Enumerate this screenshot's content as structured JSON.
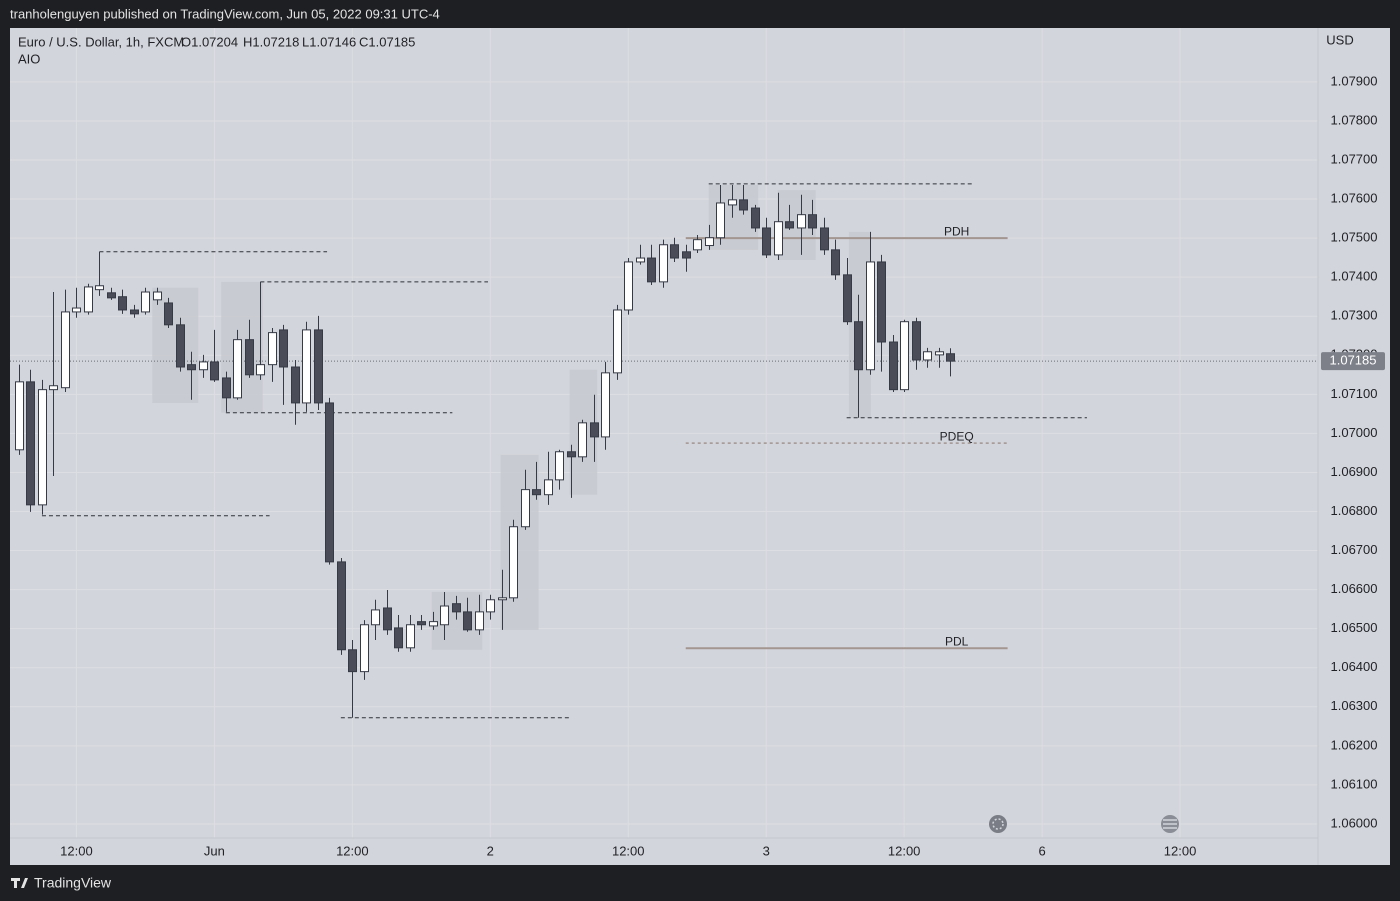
{
  "header": {
    "title": "tranholenguyen published on TradingView.com, Jun 05, 2022 09:31 UTC-4"
  },
  "footer": {
    "brand": "TradingView"
  },
  "chart_data": {
    "type": "candlestick",
    "symbol": "Euro / U.S. Dollar, 1h, FXCM",
    "ohlc_legend": [
      "O1.07204",
      "H1.07218",
      "L1.07146",
      "C1.07185"
    ],
    "indicator": "AIO",
    "currency": "USD",
    "open": [
      1.06958,
      1.07132,
      1.06817,
      1.07112,
      1.07117,
      1.07311,
      1.07311,
      1.07368,
      1.0736,
      1.0735,
      1.07316,
      1.07311,
      1.07342,
      1.07334,
      1.07278,
      1.07176,
      1.07163,
      1.07183,
      1.07142,
      1.07091,
      1.0724,
      1.0715,
      1.07176,
      1.07265,
      1.0717,
      1.07078,
      1.07265,
      1.07078,
      1.06671,
      1.06446,
      1.0639,
      1.0651,
      1.06553,
      1.06502,
      1.06451,
      1.06518,
      1.06507,
      1.0651,
      1.06564,
      1.06543,
      1.06497,
      1.06543,
      1.06574,
      1.06579,
      1.06761,
      1.06856,
      1.06843,
      1.06881,
      1.06953,
      1.0694,
      1.07027,
      1.06991,
      1.07155,
      1.07316,
      1.07439,
      1.07449,
      1.07388,
      1.07483,
      1.07465,
      1.0747,
      1.07481,
      1.07501,
      1.07585,
      1.07598,
      1.07577,
      1.07526,
      1.07457,
      1.07542,
      1.07526,
      1.0756,
      1.07526,
      1.0747,
      1.07406,
      1.07286,
      1.07163,
      1.07439,
      1.07234,
      1.07112,
      1.07286,
      1.07188,
      1.07201,
      1.07204
    ],
    "high": [
      1.07176,
      1.07163,
      1.07137,
      1.07362,
      1.07368,
      1.07373,
      1.07383,
      1.07465,
      1.07373,
      1.07368,
      1.07329,
      1.07373,
      1.07373,
      1.07347,
      1.07296,
      1.07209,
      1.07201,
      1.07265,
      1.07158,
      1.07265,
      1.07291,
      1.07388,
      1.0727,
      1.07278,
      1.07188,
      1.07286,
      1.07301,
      1.07091,
      1.06681,
      1.06471,
      1.06522,
      1.06574,
      1.06599,
      1.06535,
      1.06535,
      1.06535,
      1.06543,
      1.06594,
      1.06584,
      1.06579,
      1.06587,
      1.06587,
      1.06651,
      1.06779,
      1.06907,
      1.06927,
      1.06953,
      1.06958,
      1.06971,
      1.07035,
      1.07099,
      1.07183,
      1.07329,
      1.07449,
      1.07483,
      1.07483,
      1.07496,
      1.07501,
      1.07483,
      1.07508,
      1.07534,
      1.07636,
      1.07636,
      1.07636,
      1.07585,
      1.07552,
      1.07616,
      1.07585,
      1.07611,
      1.07598,
      1.07552,
      1.07496,
      1.07449,
      1.07355,
      1.07516,
      1.07457,
      1.07252,
      1.07291,
      1.07296,
      1.07219,
      1.07219,
      1.07218
    ],
    "low": [
      1.06945,
      1.06799,
      1.06792,
      1.06891,
      1.07106,
      1.07296,
      1.07304,
      1.07352,
      1.07342,
      1.07306,
      1.07296,
      1.07304,
      1.07329,
      1.0727,
      1.07158,
      1.07086,
      1.07142,
      1.07132,
      1.07055,
      1.07086,
      1.07142,
      1.07137,
      1.07132,
      1.07073,
      1.07022,
      1.07055,
      1.0706,
      1.06664,
      1.06433,
      1.06272,
      1.06369,
      1.06471,
      1.06484,
      1.06441,
      1.06441,
      1.06497,
      1.06497,
      1.06471,
      1.06523,
      1.06492,
      1.06484,
      1.06523,
      1.06497,
      1.06569,
      1.06753,
      1.0683,
      1.06817,
      1.06856,
      1.06835,
      1.06927,
      1.06927,
      1.06958,
      1.07137,
      1.07304,
      1.07432,
      1.0738,
      1.07373,
      1.07439,
      1.07414,
      1.07462,
      1.0747,
      1.07483,
      1.07552,
      1.0756,
      1.07516,
      1.07449,
      1.07444,
      1.07521,
      1.07457,
      1.07508,
      1.07457,
      1.07393,
      1.07278,
      1.0704,
      1.0715,
      1.07158,
      1.07106,
      1.07106,
      1.07163,
      1.07168,
      1.07168,
      1.07146
    ],
    "close": [
      1.07132,
      1.06817,
      1.07112,
      1.07122,
      1.07311,
      1.07321,
      1.07375,
      1.07378,
      1.07347,
      1.07316,
      1.07306,
      1.07362,
      1.07362,
      1.07278,
      1.0717,
      1.07163,
      1.07183,
      1.07137,
      1.07091,
      1.0724,
      1.0715,
      1.07176,
      1.07258,
      1.0717,
      1.07078,
      1.07265,
      1.07078,
      1.06671,
      1.06446,
      1.0639,
      1.0651,
      1.06548,
      1.06497,
      1.06451,
      1.0651,
      1.0651,
      1.06518,
      1.06558,
      1.06543,
      1.06497,
      1.06543,
      1.06574,
      1.06579,
      1.06761,
      1.06856,
      1.06843,
      1.06881,
      1.06953,
      1.0694,
      1.07027,
      1.06991,
      1.07155,
      1.07316,
      1.07439,
      1.07449,
      1.07388,
      1.07483,
      1.07449,
      1.07449,
      1.07496,
      1.07501,
      1.0759,
      1.07598,
      1.07572,
      1.07526,
      1.07457,
      1.07542,
      1.07526,
      1.0756,
      1.07526,
      1.0747,
      1.07406,
      1.07286,
      1.07163,
      1.07439,
      1.07234,
      1.07112,
      1.07286,
      1.07188,
      1.07209,
      1.07209,
      1.07185
    ],
    "up_color": "#ffffff",
    "down_color": "#4a4d57",
    "outline_color": "#363a45",
    "xlim": [
      -0.78,
      113
    ],
    "xticks": [
      {
        "value": 5,
        "label": "12:00"
      },
      {
        "value": 17,
        "label": "Jun"
      },
      {
        "value": 29,
        "label": "12:00"
      },
      {
        "value": 41,
        "label": "2"
      },
      {
        "value": 53,
        "label": "12:00"
      },
      {
        "value": 65,
        "label": "3"
      },
      {
        "value": 77,
        "label": "12:00"
      },
      {
        "value": 89,
        "label": "6"
      },
      {
        "value": 101,
        "label": "12:00"
      }
    ],
    "ylim": [
      1.05964,
      1.08038
    ],
    "yticks": [
      {
        "value": 1.079,
        "label": "1.07900"
      },
      {
        "value": 1.078,
        "label": "1.07800"
      },
      {
        "value": 1.077,
        "label": "1.07700"
      },
      {
        "value": 1.076,
        "label": "1.07600"
      },
      {
        "value": 1.075,
        "label": "1.07500"
      },
      {
        "value": 1.074,
        "label": "1.07400"
      },
      {
        "value": 1.073,
        "label": "1.07300"
      },
      {
        "value": 1.072,
        "label": "1.07200"
      },
      {
        "value": 1.071,
        "label": "1.07100"
      },
      {
        "value": 1.07,
        "label": "1.07000"
      },
      {
        "value": 1.069,
        "label": "1.06900"
      },
      {
        "value": 1.068,
        "label": "1.06800"
      },
      {
        "value": 1.067,
        "label": "1.06700"
      },
      {
        "value": 1.066,
        "label": "1.06600"
      },
      {
        "value": 1.065,
        "label": "1.06500"
      },
      {
        "value": 1.064,
        "label": "1.06400"
      },
      {
        "value": 1.063,
        "label": "1.06300"
      },
      {
        "value": 1.062,
        "label": "1.06200"
      },
      {
        "value": 1.061,
        "label": "1.06100"
      },
      {
        "value": 1.06,
        "label": "1.06000"
      }
    ],
    "grid": true,
    "last_price": {
      "value": 1.07185,
      "label": "1.07185"
    },
    "zones": [
      {
        "x": [
          11.6,
          15.6
        ],
        "range": [
          1.07078,
          1.07373
        ]
      },
      {
        "x": [
          17.6,
          21.2
        ],
        "range": [
          1.07053,
          1.07388
        ]
      },
      {
        "x": [
          35.9,
          40.3
        ],
        "range": [
          1.06446,
          1.06594
        ]
      },
      {
        "x": [
          41.9,
          45.2
        ],
        "range": [
          1.06497,
          1.06945
        ]
      },
      {
        "x": [
          47.9,
          50.3
        ],
        "range": [
          1.06843,
          1.07163
        ]
      },
      {
        "x": [
          60,
          64.3
        ],
        "range": [
          1.0747,
          1.07636
        ]
      },
      {
        "x": [
          66,
          69.3
        ],
        "range": [
          1.07444,
          1.07623
        ]
      },
      {
        "x": [
          72.2,
          74.1
        ],
        "range": [
          1.0704,
          1.07516
        ]
      }
    ],
    "levels": [
      {
        "price": 1.07465,
        "x": [
          7,
          26.8
        ]
      },
      {
        "price": 1.07388,
        "x": [
          21,
          40.8
        ]
      },
      {
        "price": 1.07053,
        "x": [
          18,
          37.7
        ]
      },
      {
        "price": 1.06789,
        "x": [
          2,
          21.8
        ]
      },
      {
        "price": 1.06272,
        "x": [
          28,
          48
        ]
      },
      {
        "price": 1.07639,
        "x": [
          60,
          83
        ]
      },
      {
        "price": 1.0704,
        "x": [
          72,
          92.9
        ]
      }
    ],
    "ref_lines": [
      {
        "name": "PDH",
        "value": 1.075,
        "x": [
          58,
          86
        ],
        "style": "solid",
        "color": "#a39590"
      },
      {
        "name": "PDEQ",
        "value": 1.06975,
        "x": [
          58,
          86
        ],
        "style": "dashed",
        "color": "#a39590"
      },
      {
        "name": "PDL",
        "value": 1.0645,
        "x": [
          58,
          86
        ],
        "style": "solid",
        "color": "#a39590"
      }
    ]
  }
}
